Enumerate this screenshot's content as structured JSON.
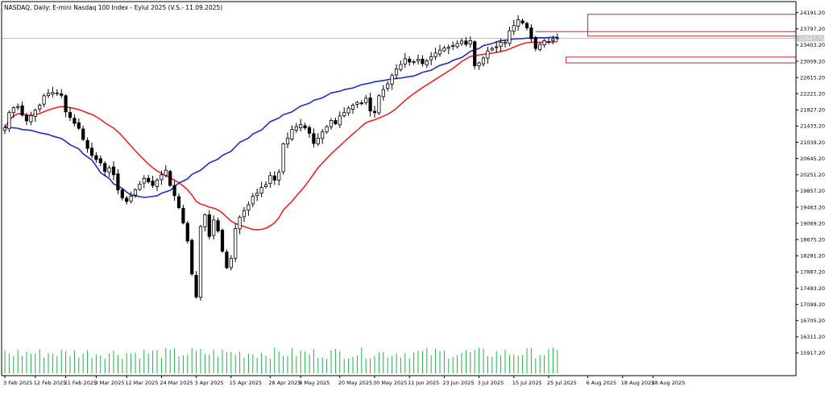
{
  "window": {
    "title": "NASDAQ, Daily:  E-mini Nasdaq 100 Index - Eylul 2025 (V.S.- 11.09.2025)"
  },
  "colors": {
    "background": "#ffffff",
    "candle_body_up": "#ffffff",
    "candle_body_down": "#000000",
    "candle_wick": "#000000",
    "ma_fast": "#e8262a",
    "ma_slow": "#1f2fb8",
    "volume": "#22b14c",
    "rect": "#c0272d",
    "hline": "#bdbdbd",
    "axis": "#000000"
  },
  "chart_data": {
    "type": "candlestick",
    "symbol": "NASDAQ",
    "timeframe": "Daily",
    "instrument": "E-mini Nasdaq 100 Index - Eylul 2025 (V.S.- 11.09.2025)",
    "y_axis": {
      "ylim": [
        15720,
        24400
      ],
      "ticks": [
        "24191.20",
        "23797.20",
        "23403.20",
        "23009.20",
        "22615.20",
        "22221.20",
        "21827.20",
        "21433.20",
        "21039.20",
        "20645.20",
        "20251.20",
        "19857.20",
        "19463.20",
        "19069.20",
        "18675.20",
        "18281.20",
        "17887.20",
        "17493.20",
        "17099.20",
        "16705.20",
        "16311.20",
        "15917.20"
      ],
      "current_price": "23567.75"
    },
    "x_axis": {
      "tick_labels": [
        "3 Feb 2025",
        "12 Feb 2025",
        "21 Feb 2025",
        "3 Mar 2025",
        "12 Mar 2025",
        "24 Mar 2025",
        "3 Apr 2025",
        "15 Apr 2025",
        "28 Apr 2025",
        "8 May 2025",
        "20 May 2025",
        "30 May 2025",
        "11 Jun 2025",
        "23 Jun 2025",
        "3 Jul 2025",
        "15 Jul 2025",
        "25 Jul 2025",
        "6 Aug 2025",
        "18 Aug 2025",
        "28 Aug 2025"
      ],
      "tick_bar_index": [
        0,
        7,
        14,
        21,
        28,
        36,
        44,
        52,
        61,
        68,
        77,
        85,
        93,
        101,
        109,
        117,
        125,
        134,
        142,
        149
      ]
    },
    "closes": [
      21390,
      21760,
      21880,
      21910,
      21700,
      21560,
      21690,
      21820,
      21940,
      22170,
      22230,
      22250,
      22240,
      22180,
      21780,
      21640,
      21500,
      21380,
      21110,
      20890,
      20720,
      20620,
      20540,
      20330,
      20420,
      20250,
      19880,
      19690,
      19600,
      19730,
      19890,
      20020,
      20160,
      20080,
      19990,
      20120,
      20250,
      20360,
      19990,
      19740,
      19450,
      19080,
      18640,
      17840,
      17280,
      18990,
      19280,
      18750,
      19150,
      18880,
      18390,
      17990,
      18220,
      18940,
      19220,
      19380,
      19520,
      19730,
      19800,
      19940,
      20010,
      20230,
      20120,
      20310,
      21000,
      21140,
      21350,
      21420,
      21470,
      21390,
      21260,
      21010,
      21140,
      21290,
      21420,
      21570,
      21490,
      21680,
      21760,
      21870,
      21940,
      22010,
      21990,
      22110,
      21800,
      21760,
      22170,
      22320,
      22460,
      22670,
      22820,
      22930,
      23070,
      22990,
      23000,
      23060,
      22950,
      23020,
      23120,
      23210,
      23280,
      23330,
      23350,
      23390,
      23440,
      23500,
      23420,
      23510,
      22900,
      22970,
      23090,
      23260,
      23320,
      23360,
      23470,
      23470,
      23750,
      23880,
      24020,
      23940,
      23820,
      23560,
      23320,
      23420,
      23510,
      23490,
      23550,
      23580
    ],
    "series": [
      {
        "name": "",
        "values": [
          21400,
          21400,
          21380,
          21350,
          21330,
          21300,
          21270,
          21230,
          21190,
          21130,
          21060,
          20980,
          20880,
          20760,
          20610,
          20460,
          20300,
          20160,
          20030,
          19920,
          19830,
          19760,
          19720,
          19700,
          19710,
          19740,
          19800,
          19870,
          19960,
          20050,
          20150,
          20260,
          20360,
          20450,
          20540,
          20630,
          20720,
          20820,
          20930,
          21040,
          21140,
          21240,
          21340,
          21440,
          21540,
          21630,
          21710,
          21780,
          21850,
          21920,
          21990,
          22060,
          22120,
          22180,
          22240,
          22280,
          22320,
          22360,
          22400,
          22440,
          22480,
          22510,
          22540,
          22560,
          22580,
          22600,
          22620,
          22650,
          22690,
          22740,
          22790,
          22850,
          22910,
          22970,
          23030,
          23100,
          23170,
          23250,
          23320,
          23390,
          23440,
          23480,
          23510,
          23530,
          23550,
          23560,
          23570,
          23570,
          23580,
          23580,
          23590,
          23590
        ]
      }
    ]
  }
}
